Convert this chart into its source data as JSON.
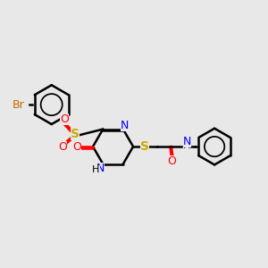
{
  "background_color": "#e8e8e8",
  "bond_color": "#000000",
  "bond_width": 1.8,
  "colors": {
    "C": "#000000",
    "N": "#0000ff",
    "O": "#ff0000",
    "S": "#ccaa00",
    "Br": "#cc6600",
    "H": "#000000"
  },
  "figsize": [
    3.0,
    3.0
  ],
  "dpi": 100
}
